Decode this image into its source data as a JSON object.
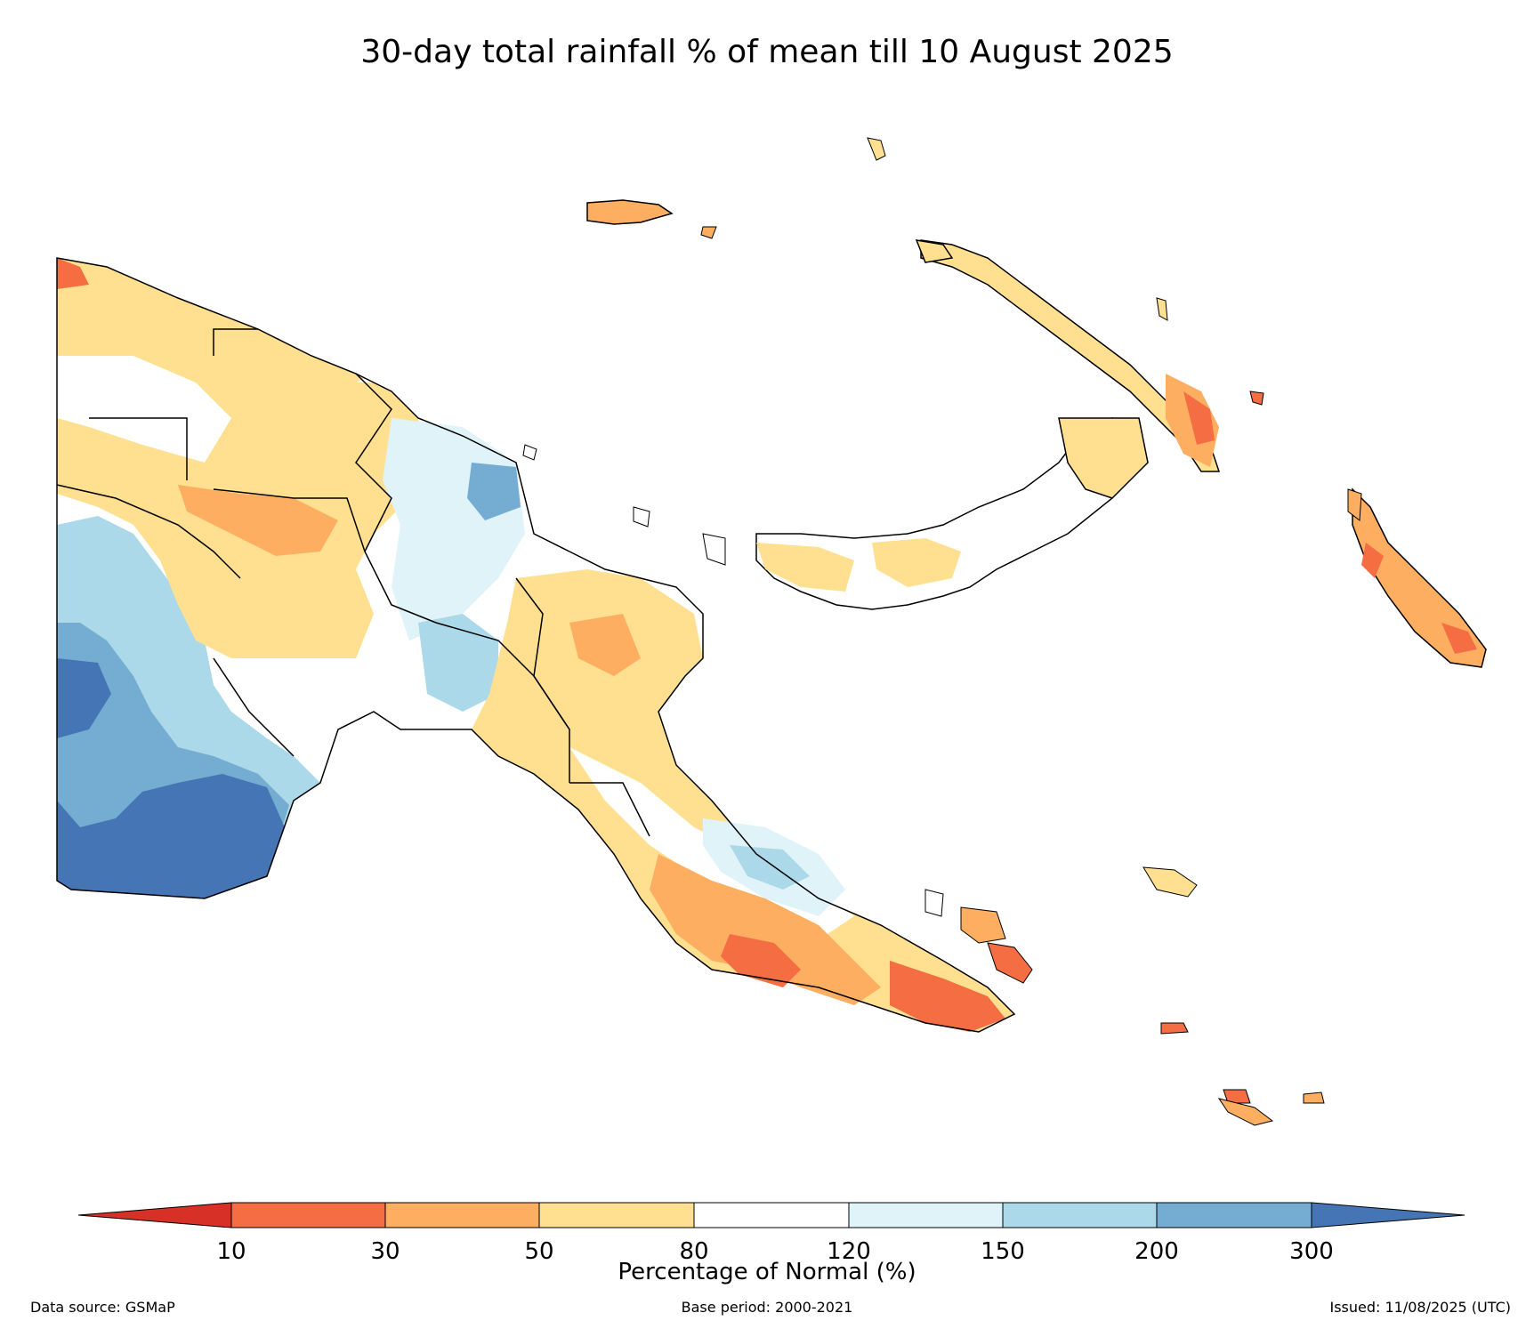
{
  "title": "30-day total rainfall % of mean till 10 August 2025",
  "colorbar": {
    "label": "Percentage of Normal (%)",
    "ticks": [
      "10",
      "30",
      "50",
      "80",
      "120",
      "150",
      "200",
      "300"
    ],
    "colors": [
      "#d73027",
      "#f46d43",
      "#fdae61",
      "#fee090",
      "#ffffff",
      "#e0f3f8",
      "#abd9e9",
      "#74add1",
      "#4575b4"
    ]
  },
  "footer": {
    "source": "Data source: GSMaP",
    "base_period": "Base period: 2000-2021",
    "issued": "Issued: 11/08/2025 (UTC)"
  },
  "legend_classes": {
    "very_low": "#d73027",
    "low": "#f46d43",
    "below": "#fdae61",
    "slightly_below": "#fee090",
    "normal": "#ffffff",
    "slightly_above": "#e0f3f8",
    "above": "#abd9e9",
    "well_above": "#74add1",
    "extreme": "#4575b4"
  }
}
